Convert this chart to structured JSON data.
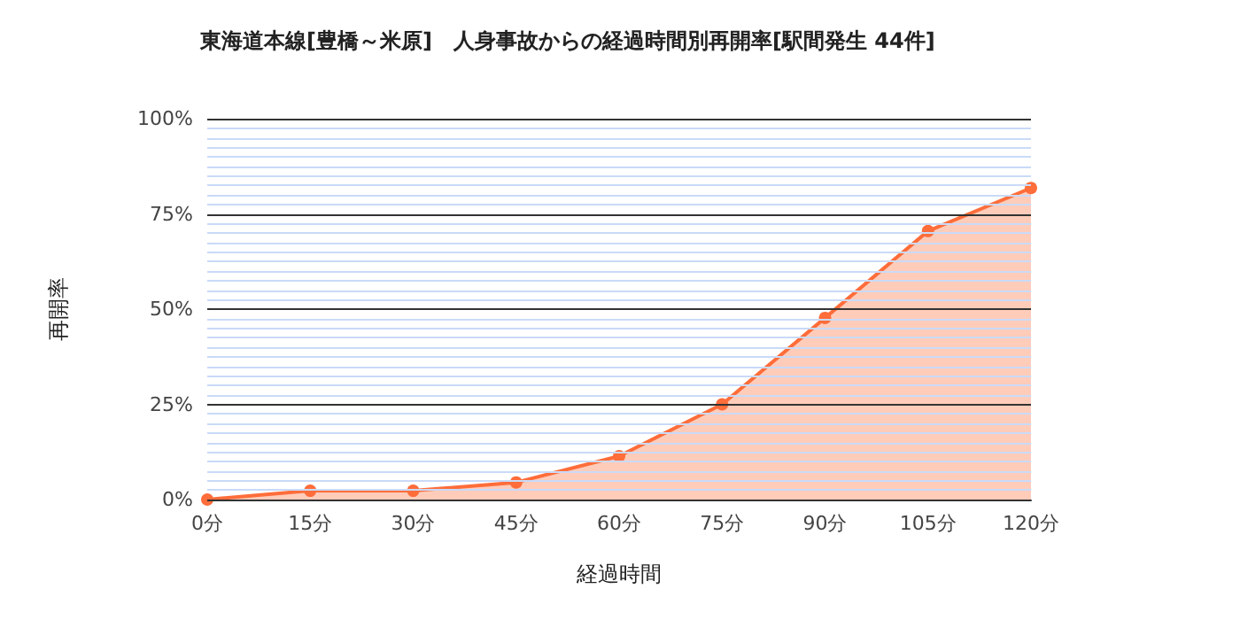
{
  "chart_data": {
    "type": "area",
    "title": "東海道本線[豊橋～米原]　人身事故からの経過時間別再開率[駅間発生 44件]",
    "xlabel": "経過時間",
    "ylabel": "再開率",
    "categories": [
      "0分",
      "15分",
      "30分",
      "45分",
      "60分",
      "75分",
      "90分",
      "105分",
      "120分"
    ],
    "series": [
      {
        "color": "#ff6d3a",
        "values": [
          0,
          2.3,
          2.3,
          4.5,
          11.4,
          25,
          47.7,
          70.5,
          81.8
        ]
      }
    ],
    "ylim": [
      0,
      100
    ],
    "yticks": [
      {
        "value": 0,
        "label": "0%"
      },
      {
        "value": 2.5,
        "label": null
      },
      {
        "value": 5,
        "label": null
      },
      {
        "value": 7.5,
        "label": null
      },
      {
        "value": 10,
        "label": null
      },
      {
        "value": 12.5,
        "label": null
      },
      {
        "value": 15,
        "label": null
      },
      {
        "value": 17.5,
        "label": null
      },
      {
        "value": 20,
        "label": null
      },
      {
        "value": 22.5,
        "label": null
      },
      {
        "value": 25,
        "label": "25%"
      },
      {
        "value": 27.5,
        "label": null
      },
      {
        "value": 30,
        "label": null
      },
      {
        "value": 32.5,
        "label": null
      },
      {
        "value": 35,
        "label": null
      },
      {
        "value": 37.5,
        "label": null
      },
      {
        "value": 40,
        "label": null
      },
      {
        "value": 42.5,
        "label": null
      },
      {
        "value": 45,
        "label": null
      },
      {
        "value": 47.5,
        "label": null
      },
      {
        "value": 50,
        "label": "50%"
      },
      {
        "value": 52.5,
        "label": null
      },
      {
        "value": 55,
        "label": null
      },
      {
        "value": 57.5,
        "label": null
      },
      {
        "value": 60,
        "label": null
      },
      {
        "value": 62.5,
        "label": null
      },
      {
        "value": 65,
        "label": null
      },
      {
        "value": 67.5,
        "label": null
      },
      {
        "value": 70,
        "label": null
      },
      {
        "value": 72.5,
        "label": null
      },
      {
        "value": 75,
        "label": "75%"
      },
      {
        "value": 77.5,
        "label": null
      },
      {
        "value": 80,
        "label": null
      },
      {
        "value": 82.5,
        "label": null
      },
      {
        "value": 85,
        "label": null
      },
      {
        "value": 87.5,
        "label": null
      },
      {
        "value": 90,
        "label": null
      },
      {
        "value": 92.5,
        "label": null
      },
      {
        "value": 95,
        "label": null
      },
      {
        "value": 97.5,
        "label": null
      },
      {
        "value": 100,
        "label": "100%"
      }
    ],
    "grid": true,
    "marker": "circle",
    "line_style": "solid"
  }
}
